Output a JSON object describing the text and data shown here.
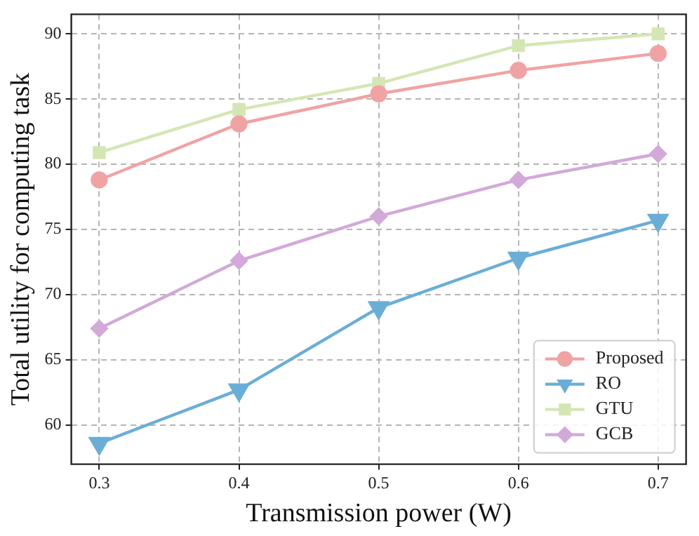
{
  "chart_data": {
    "type": "line",
    "xlabel": "Transmission power (W)",
    "ylabel": "Total utility for computing task",
    "x": [
      0.3,
      0.4,
      0.5,
      0.6,
      0.7
    ],
    "series": [
      {
        "name": "Proposed",
        "color": "#f0a3a3",
        "marker": "circle",
        "values": [
          78.8,
          83.1,
          85.4,
          87.2,
          88.5
        ]
      },
      {
        "name": "RO",
        "color": "#6aaed6",
        "marker": "triangle_down",
        "values": [
          58.6,
          62.7,
          69.0,
          72.8,
          75.7
        ]
      },
      {
        "name": "GTU",
        "color": "#d5e6b5",
        "marker": "square",
        "values": [
          80.9,
          84.2,
          86.2,
          89.1,
          90.0
        ]
      },
      {
        "name": "GCB",
        "color": "#d2a9d9",
        "marker": "diamond",
        "values": [
          67.4,
          72.6,
          76.0,
          78.8,
          80.8
        ]
      }
    ],
    "xlim": [
      0.28,
      0.72
    ],
    "xticks": [
      0.3,
      0.4,
      0.5,
      0.6,
      0.7
    ],
    "ylim": [
      57,
      91.5
    ],
    "yticks": [
      60,
      65,
      70,
      75,
      80,
      85,
      90
    ],
    "grid": true,
    "legend": "bottom right"
  }
}
